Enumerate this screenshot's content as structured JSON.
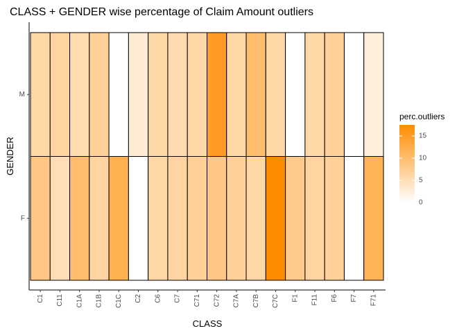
{
  "chart_data": {
    "type": "heatmap",
    "title": "CLASS + GENDER wise percentage of Claim Amount outliers",
    "xlabel": "CLASS",
    "ylabel": "GENDER",
    "x_categories": [
      "C1",
      "C11",
      "C1A",
      "C1B",
      "C1C",
      "C2",
      "C6",
      "C7",
      "C71",
      "C72",
      "C7A",
      "C7B",
      "C7C",
      "F1",
      "F11",
      "F6",
      "F7",
      "F71"
    ],
    "y_categories": [
      "M",
      "F"
    ],
    "series": [
      {
        "name": "M",
        "values": [
          6,
          6.5,
          5.5,
          7,
          0,
          3,
          6,
          5.5,
          6,
          15,
          6,
          10,
          6,
          0,
          6,
          7,
          0,
          2.5
        ]
      },
      {
        "name": "F",
        "values": [
          8.5,
          5,
          10,
          6.5,
          12,
          0,
          6,
          6.5,
          7,
          8.5,
          7,
          6,
          17.5,
          8,
          6.5,
          7,
          0,
          11.5
        ]
      }
    ],
    "legend": {
      "title": "perc.outliers",
      "ticks": [
        0,
        5,
        10,
        15
      ],
      "range": [
        0,
        17.5
      ],
      "position": "right",
      "color_low": "#ffffff",
      "color_high": "#ff8c00"
    },
    "grid": false
  }
}
